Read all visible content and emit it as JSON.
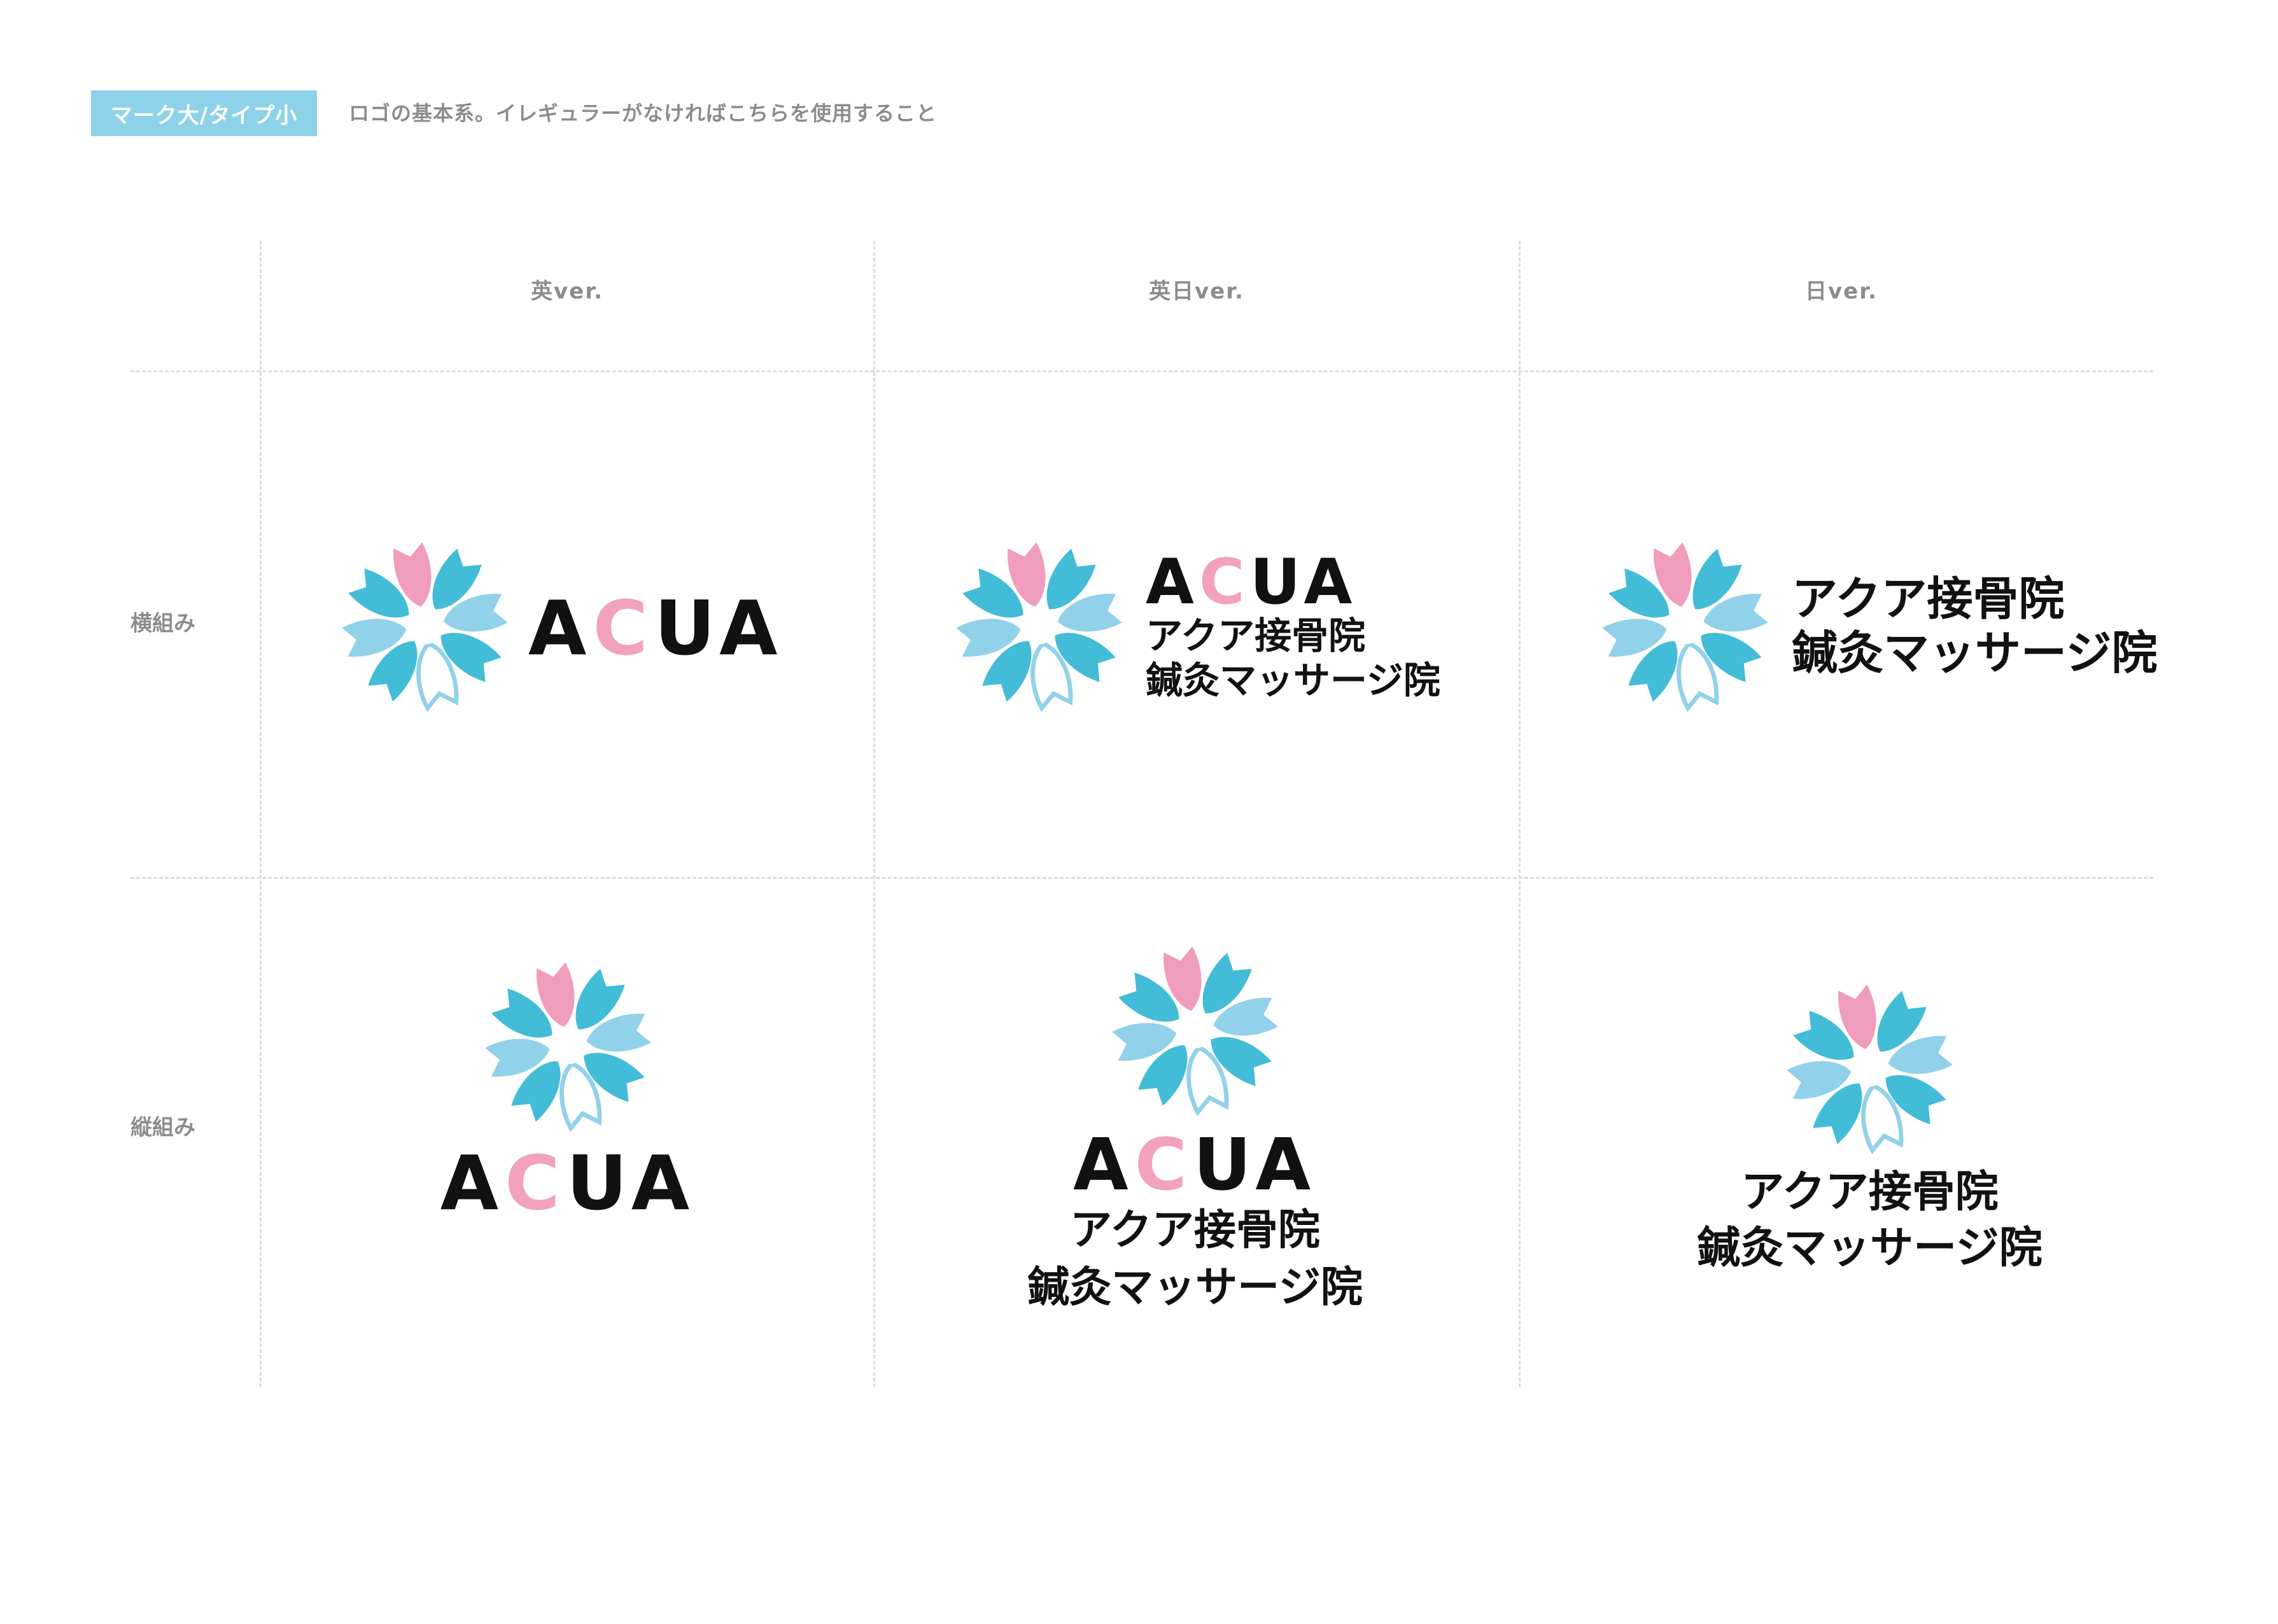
{
  "header": {
    "tag_label": "マーク大/タイプ小",
    "description": "ロゴの基本系。イレギュラーがなければこちらを使用すること"
  },
  "columns": [
    {
      "label": "英ver."
    },
    {
      "label": "英日ver."
    },
    {
      "label": "日ver."
    }
  ],
  "rows": [
    {
      "label": "横組み"
    },
    {
      "label": "縦組み"
    }
  ],
  "logo": {
    "wordmark": [
      "A",
      "C",
      "UA"
    ],
    "japanese_line1": "アクア接骨院",
    "japanese_line2": "鍼灸マッサージ院"
  },
  "colors": {
    "tag_bg": "#8ed2ea",
    "petal_dark": "#42bcd7",
    "petal_light": "#92d1ea",
    "petal_pink": "#f09cbc",
    "wordmark_pink": "#f2a1bf",
    "text_black": "#111111",
    "grid_line": "#dcdcdc"
  }
}
